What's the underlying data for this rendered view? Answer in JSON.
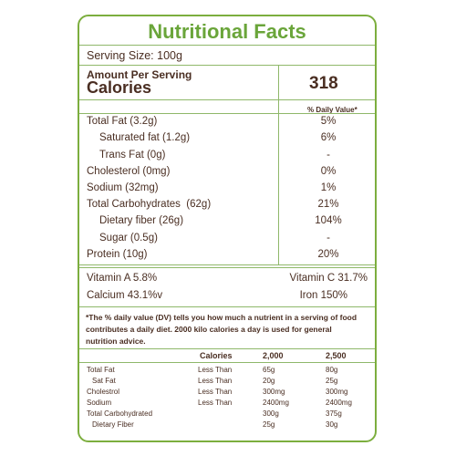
{
  "title": "Nutritional Facts",
  "serving_size": "Serving Size: 100g",
  "amount_per_serving": "Amount Per Serving",
  "calories_label": "Calories",
  "calories_value": "318",
  "daily_value_header": "% Daily Value*",
  "nutrients": [
    {
      "label": "Total Fat (3.2g)",
      "value": "5%"
    },
    {
      "label": "Saturated fat (1.2g)",
      "value": "6%"
    },
    {
      "label": "Trans Fat (0g)",
      "value": "-"
    },
    {
      "label": "Cholesterol (0mg)",
      "value": "0%"
    },
    {
      "label": "Sodium (32mg)",
      "value": "1%"
    },
    {
      "label": "Total Carbohydrates  (62g)",
      "value": "21%"
    },
    {
      "label": "Dietary fiber (26g)",
      "value": "104%"
    },
    {
      "label": "Sugar (0.5g)",
      "value": "-"
    },
    {
      "label": "Protein (10g)",
      "value": "20%"
    }
  ],
  "vitamins": {
    "vitamin_a": "Vitamin A 5.8%",
    "vitamin_c": "Vitamin C 31.7%",
    "calcium": "Calcium 43.1%v",
    "iron": "Iron 150%"
  },
  "footnote": "*The % daily value (DV) tells you how much a nutrient in a serving of food contributes a daily diet. 2000 kilo calories a day is used for general nutrition advice.",
  "footer_table": {
    "headers": [
      "Calories",
      "2,000",
      "2,500"
    ],
    "rows": [
      {
        "label": "Total Fat",
        "cond": "Less Than",
        "v1": "65g",
        "v2": "80g"
      },
      {
        "label": "Sat Fat",
        "cond": "Less Than",
        "v1": "20g",
        "v2": "25g"
      },
      {
        "label": "Cholestrol",
        "cond": "Less Than",
        "v1": "300mg",
        "v2": "300mg"
      },
      {
        "label": "Sodium",
        "cond": "Less Than",
        "v1": "2400mg",
        "v2": "2400mg"
      },
      {
        "label": "Total Carbohydrated",
        "cond": "",
        "v1": "300g",
        "v2": "375g"
      },
      {
        "label": "Dietary Fiber",
        "cond": "",
        "v1": "25g",
        "v2": "30g"
      }
    ]
  },
  "colors": {
    "border": "#7cae3e",
    "title": "#6aa53a",
    "text": "#4a2e22"
  }
}
